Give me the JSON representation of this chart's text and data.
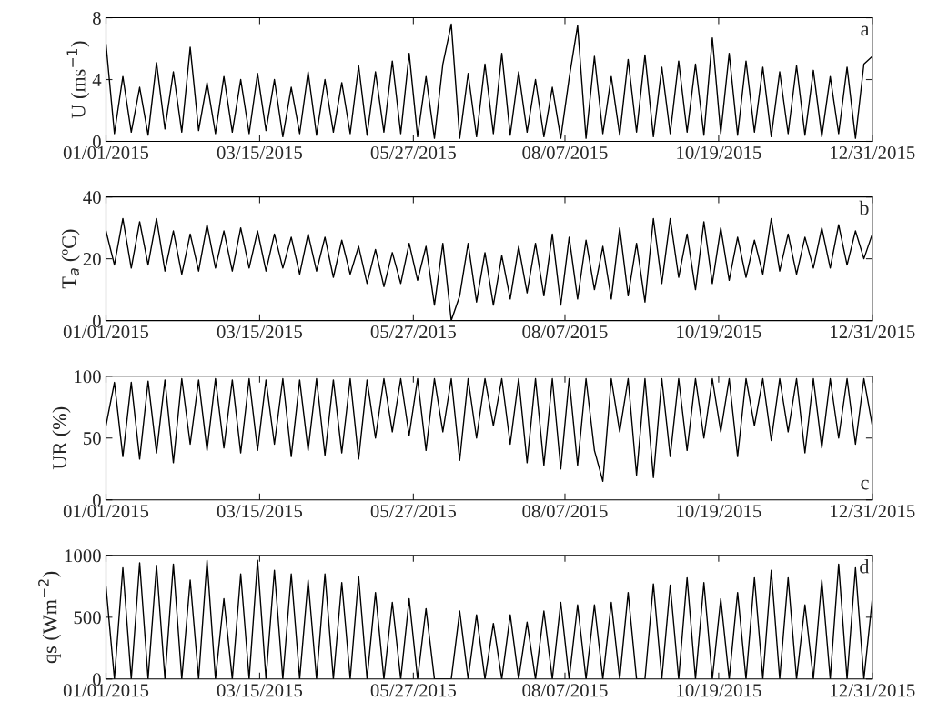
{
  "chart_data": [
    {
      "type": "line",
      "ylabel": "U (ms$^{−1}$)",
      "annotations": [
        "a"
      ],
      "xlim": [
        "2015-01-01",
        "2015-12-31"
      ],
      "xticks": [
        {
          "value": "2015-01-01",
          "label": "01/01/2015"
        },
        {
          "value": "2015-03-15",
          "label": "03/15/2015"
        },
        {
          "value": "2015-05-27",
          "label": "05/27/2015"
        },
        {
          "value": "2015-08-07",
          "label": "08/07/2015"
        },
        {
          "value": "2015-10-19",
          "label": "10/19/2015"
        },
        {
          "value": "2015-12-31",
          "label": "12/31/2015"
        }
      ],
      "ylim": [
        0,
        8
      ],
      "yticks": [
        0,
        4,
        8
      ],
      "grid": false,
      "legend": false,
      "x": [
        "2015-01-01",
        "2015-01-05",
        "2015-01-09",
        "2015-01-13",
        "2015-01-17",
        "2015-01-21",
        "2015-01-25",
        "2015-01-29",
        "2015-02-02",
        "2015-02-06",
        "2015-02-10",
        "2015-02-14",
        "2015-02-18",
        "2015-02-22",
        "2015-02-26",
        "2015-03-02",
        "2015-03-06",
        "2015-03-10",
        "2015-03-14",
        "2015-03-18",
        "2015-03-22",
        "2015-03-26",
        "2015-03-30",
        "2015-04-03",
        "2015-04-07",
        "2015-04-11",
        "2015-04-15",
        "2015-04-19",
        "2015-04-23",
        "2015-04-27",
        "2015-05-01",
        "2015-05-05",
        "2015-05-09",
        "2015-05-13",
        "2015-05-17",
        "2015-05-21",
        "2015-05-25",
        "2015-05-29",
        "2015-06-02",
        "2015-06-06",
        "2015-06-10",
        "2015-06-14",
        "2015-06-18",
        "2015-06-22",
        "2015-06-26",
        "2015-06-30",
        "2015-07-04",
        "2015-07-08",
        "2015-07-12",
        "2015-07-16",
        "2015-07-20",
        "2015-07-24",
        "2015-07-28",
        "2015-08-01",
        "2015-08-05",
        "2015-08-09",
        "2015-08-13",
        "2015-08-17",
        "2015-08-21",
        "2015-08-25",
        "2015-08-29",
        "2015-09-02",
        "2015-09-06",
        "2015-09-10",
        "2015-09-14",
        "2015-09-18",
        "2015-09-22",
        "2015-09-26",
        "2015-09-30",
        "2015-10-04",
        "2015-10-08",
        "2015-10-12",
        "2015-10-16",
        "2015-10-20",
        "2015-10-24",
        "2015-10-28",
        "2015-11-01",
        "2015-11-05",
        "2015-11-09",
        "2015-11-13",
        "2015-11-17",
        "2015-11-21",
        "2015-11-25",
        "2015-11-29",
        "2015-12-03",
        "2015-12-07",
        "2015-12-11",
        "2015-12-15",
        "2015-12-19",
        "2015-12-23",
        "2015-12-27",
        "2015-12-31"
      ],
      "series": [
        {
          "color": "#000000",
          "values": [
            6.3,
            0.5,
            4.2,
            0.6,
            3.5,
            0.4,
            5.1,
            0.8,
            4.5,
            0.6,
            6.1,
            0.7,
            3.8,
            0.5,
            4.2,
            0.6,
            4.0,
            0.5,
            4.4,
            0.7,
            4.0,
            0.3,
            3.5,
            0.5,
            4.5,
            0.4,
            4.0,
            0.6,
            3.8,
            0.5,
            4.9,
            0.4,
            4.5,
            0.6,
            5.2,
            0.5,
            5.7,
            0.3,
            4.2,
            0.2,
            5.0,
            7.6,
            0.2,
            4.4,
            0.3,
            5.0,
            0.5,
            5.7,
            0.4,
            4.5,
            0.6,
            4.0,
            0.3,
            3.5,
            0.2,
            4.1,
            7.5,
            0.2,
            5.5,
            0.5,
            4.2,
            0.4,
            5.3,
            0.6,
            5.6,
            0.3,
            4.8,
            0.5,
            5.2,
            0.6,
            5.0,
            0.4,
            6.7,
            0.5,
            5.7,
            0.4,
            5.2,
            0.6,
            4.8,
            0.3,
            4.5,
            0.5,
            4.9,
            0.4,
            4.6,
            0.3,
            4.2,
            0.5,
            4.8,
            0.2,
            5.0,
            5.5
          ]
        }
      ]
    },
    {
      "type": "line",
      "ylabel": "T$_{a}$ (ºC)",
      "annotations": [
        "b"
      ],
      "xlim": [
        "2015-01-01",
        "2015-12-31"
      ],
      "xticks": [
        {
          "value": "2015-01-01",
          "label": "01/01/2015"
        },
        {
          "value": "2015-03-15",
          "label": "03/15/2015"
        },
        {
          "value": "2015-05-27",
          "label": "05/27/2015"
        },
        {
          "value": "2015-08-07",
          "label": "08/07/2015"
        },
        {
          "value": "2015-10-19",
          "label": "10/19/2015"
        },
        {
          "value": "2015-12-31",
          "label": "12/31/2015"
        }
      ],
      "ylim": [
        0,
        40
      ],
      "yticks": [
        0,
        20,
        40
      ],
      "grid": false,
      "legend": false,
      "x": [
        "2015-01-01",
        "2015-01-05",
        "2015-01-09",
        "2015-01-13",
        "2015-01-17",
        "2015-01-21",
        "2015-01-25",
        "2015-01-29",
        "2015-02-02",
        "2015-02-06",
        "2015-02-10",
        "2015-02-14",
        "2015-02-18",
        "2015-02-22",
        "2015-02-26",
        "2015-03-02",
        "2015-03-06",
        "2015-03-10",
        "2015-03-14",
        "2015-03-18",
        "2015-03-22",
        "2015-03-26",
        "2015-03-30",
        "2015-04-03",
        "2015-04-07",
        "2015-04-11",
        "2015-04-15",
        "2015-04-19",
        "2015-04-23",
        "2015-04-27",
        "2015-05-01",
        "2015-05-05",
        "2015-05-09",
        "2015-05-13",
        "2015-05-17",
        "2015-05-21",
        "2015-05-25",
        "2015-05-29",
        "2015-06-02",
        "2015-06-06",
        "2015-06-10",
        "2015-06-14",
        "2015-06-18",
        "2015-06-22",
        "2015-06-26",
        "2015-06-30",
        "2015-07-04",
        "2015-07-08",
        "2015-07-12",
        "2015-07-16",
        "2015-07-20",
        "2015-07-24",
        "2015-07-28",
        "2015-08-01",
        "2015-08-05",
        "2015-08-09",
        "2015-08-13",
        "2015-08-17",
        "2015-08-21",
        "2015-08-25",
        "2015-08-29",
        "2015-09-02",
        "2015-09-06",
        "2015-09-10",
        "2015-09-14",
        "2015-09-18",
        "2015-09-22",
        "2015-09-26",
        "2015-09-30",
        "2015-10-04",
        "2015-10-08",
        "2015-10-12",
        "2015-10-16",
        "2015-10-20",
        "2015-10-24",
        "2015-10-28",
        "2015-11-01",
        "2015-11-05",
        "2015-11-09",
        "2015-11-13",
        "2015-11-17",
        "2015-11-21",
        "2015-11-25",
        "2015-11-29",
        "2015-12-03",
        "2015-12-07",
        "2015-12-11",
        "2015-12-15",
        "2015-12-19",
        "2015-12-23",
        "2015-12-27",
        "2015-12-31"
      ],
      "series": [
        {
          "color": "#000000",
          "values": [
            29,
            18,
            33,
            17,
            32,
            18,
            33,
            16,
            29,
            15,
            28,
            16,
            31,
            17,
            29,
            16,
            30,
            17,
            29,
            16,
            28,
            17,
            27,
            15,
            28,
            16,
            27,
            14,
            26,
            15,
            24,
            12,
            23,
            11,
            22,
            12,
            25,
            13,
            24,
            5,
            25,
            0,
            8,
            25,
            6,
            22,
            5,
            21,
            7,
            24,
            9,
            25,
            8,
            28,
            5,
            27,
            7,
            26,
            10,
            24,
            7,
            30,
            8,
            25,
            6,
            33,
            12,
            33,
            14,
            28,
            10,
            32,
            12,
            30,
            13,
            27,
            14,
            26,
            15,
            33,
            16,
            28,
            15,
            27,
            17,
            30,
            17,
            31,
            18,
            29,
            20,
            28
          ]
        }
      ]
    },
    {
      "type": "line",
      "ylabel": "UR (%)",
      "annotations": [
        "c"
      ],
      "xlim": [
        "2015-01-01",
        "2015-12-31"
      ],
      "xticks": [
        {
          "value": "2015-01-01",
          "label": "01/01/2015"
        },
        {
          "value": "2015-03-15",
          "label": "03/15/2015"
        },
        {
          "value": "2015-05-27",
          "label": "05/27/2015"
        },
        {
          "value": "2015-08-07",
          "label": "08/07/2015"
        },
        {
          "value": "2015-10-19",
          "label": "10/19/2015"
        },
        {
          "value": "2015-12-31",
          "label": "12/31/2015"
        }
      ],
      "ylim": [
        0,
        100
      ],
      "yticks": [
        0,
        50,
        100
      ],
      "grid": false,
      "legend": false,
      "x": [
        "2015-01-01",
        "2015-01-05",
        "2015-01-09",
        "2015-01-13",
        "2015-01-17",
        "2015-01-21",
        "2015-01-25",
        "2015-01-29",
        "2015-02-02",
        "2015-02-06",
        "2015-02-10",
        "2015-02-14",
        "2015-02-18",
        "2015-02-22",
        "2015-02-26",
        "2015-03-02",
        "2015-03-06",
        "2015-03-10",
        "2015-03-14",
        "2015-03-18",
        "2015-03-22",
        "2015-03-26",
        "2015-03-30",
        "2015-04-03",
        "2015-04-07",
        "2015-04-11",
        "2015-04-15",
        "2015-04-19",
        "2015-04-23",
        "2015-04-27",
        "2015-05-01",
        "2015-05-05",
        "2015-05-09",
        "2015-05-13",
        "2015-05-17",
        "2015-05-21",
        "2015-05-25",
        "2015-05-29",
        "2015-06-02",
        "2015-06-06",
        "2015-06-10",
        "2015-06-14",
        "2015-06-18",
        "2015-06-22",
        "2015-06-26",
        "2015-06-30",
        "2015-07-04",
        "2015-07-08",
        "2015-07-12",
        "2015-07-16",
        "2015-07-20",
        "2015-07-24",
        "2015-07-28",
        "2015-08-01",
        "2015-08-05",
        "2015-08-09",
        "2015-08-13",
        "2015-08-17",
        "2015-08-21",
        "2015-08-25",
        "2015-08-29",
        "2015-09-02",
        "2015-09-06",
        "2015-09-10",
        "2015-09-14",
        "2015-09-18",
        "2015-09-22",
        "2015-09-26",
        "2015-09-30",
        "2015-10-04",
        "2015-10-08",
        "2015-10-12",
        "2015-10-16",
        "2015-10-20",
        "2015-10-24",
        "2015-10-28",
        "2015-11-01",
        "2015-11-05",
        "2015-11-09",
        "2015-11-13",
        "2015-11-17",
        "2015-11-21",
        "2015-11-25",
        "2015-11-29",
        "2015-12-03",
        "2015-12-07",
        "2015-12-11",
        "2015-12-15",
        "2015-12-19",
        "2015-12-23",
        "2015-12-27",
        "2015-12-31"
      ],
      "series": [
        {
          "color": "#000000",
          "values": [
            60,
            95,
            35,
            95,
            33,
            96,
            38,
            97,
            30,
            98,
            45,
            97,
            40,
            98,
            42,
            97,
            38,
            98,
            40,
            97,
            45,
            98,
            35,
            97,
            40,
            98,
            36,
            97,
            38,
            98,
            33,
            97,
            50,
            98,
            55,
            98,
            52,
            98,
            40,
            98,
            55,
            98,
            32,
            98,
            50,
            98,
            60,
            98,
            45,
            98,
            30,
            98,
            28,
            98,
            25,
            98,
            28,
            98,
            40,
            15,
            98,
            55,
            98,
            20,
            98,
            18,
            98,
            35,
            98,
            40,
            98,
            50,
            98,
            55,
            98,
            35,
            98,
            60,
            98,
            48,
            98,
            55,
            98,
            38,
            98,
            42,
            98,
            50,
            98,
            45,
            98,
            60
          ]
        }
      ]
    },
    {
      "type": "line",
      "ylabel": "qs (Wm$^{−2}$)",
      "annotations": [
        "d"
      ],
      "xlim": [
        "2015-01-01",
        "2015-12-31"
      ],
      "xticks": [
        {
          "value": "2015-01-01",
          "label": "01/01/2015"
        },
        {
          "value": "2015-03-15",
          "label": "03/15/2015"
        },
        {
          "value": "2015-05-27",
          "label": "05/27/2015"
        },
        {
          "value": "2015-08-07",
          "label": "08/07/2015"
        },
        {
          "value": "2015-10-19",
          "label": "10/19/2015"
        },
        {
          "value": "2015-12-31",
          "label": "12/31/2015"
        }
      ],
      "ylim": [
        0,
        1000
      ],
      "yticks": [
        0,
        500,
        1000
      ],
      "grid": false,
      "legend": false,
      "x": [
        "2015-01-01",
        "2015-01-05",
        "2015-01-09",
        "2015-01-13",
        "2015-01-17",
        "2015-01-21",
        "2015-01-25",
        "2015-01-29",
        "2015-02-02",
        "2015-02-06",
        "2015-02-10",
        "2015-02-14",
        "2015-02-18",
        "2015-02-22",
        "2015-02-26",
        "2015-03-02",
        "2015-03-06",
        "2015-03-10",
        "2015-03-14",
        "2015-03-18",
        "2015-03-22",
        "2015-03-26",
        "2015-03-30",
        "2015-04-03",
        "2015-04-07",
        "2015-04-11",
        "2015-04-15",
        "2015-04-19",
        "2015-04-23",
        "2015-04-27",
        "2015-05-01",
        "2015-05-05",
        "2015-05-09",
        "2015-05-13",
        "2015-05-17",
        "2015-05-21",
        "2015-05-25",
        "2015-05-29",
        "2015-06-02",
        "2015-06-06",
        "2015-06-10",
        "2015-06-14",
        "2015-06-18",
        "2015-06-22",
        "2015-06-26",
        "2015-06-30",
        "2015-07-04",
        "2015-07-08",
        "2015-07-12",
        "2015-07-16",
        "2015-07-20",
        "2015-07-24",
        "2015-07-28",
        "2015-08-01",
        "2015-08-05",
        "2015-08-09",
        "2015-08-13",
        "2015-08-17",
        "2015-08-21",
        "2015-08-25",
        "2015-08-29",
        "2015-09-02",
        "2015-09-06",
        "2015-09-10",
        "2015-09-14",
        "2015-09-18",
        "2015-09-22",
        "2015-09-26",
        "2015-09-30",
        "2015-10-04",
        "2015-10-08",
        "2015-10-12",
        "2015-10-16",
        "2015-10-20",
        "2015-10-24",
        "2015-10-28",
        "2015-11-01",
        "2015-11-05",
        "2015-11-09",
        "2015-11-13",
        "2015-11-17",
        "2015-11-21",
        "2015-11-25",
        "2015-11-29",
        "2015-12-03",
        "2015-12-07",
        "2015-12-11",
        "2015-12-15",
        "2015-12-19",
        "2015-12-23",
        "2015-12-27",
        "2015-12-31"
      ],
      "series": [
        {
          "color": "#000000",
          "values": [
            750,
            0,
            900,
            0,
            940,
            0,
            920,
            0,
            930,
            0,
            800,
            0,
            960,
            0,
            650,
            0,
            850,
            0,
            960,
            0,
            880,
            0,
            850,
            0,
            800,
            0,
            850,
            0,
            780,
            0,
            830,
            0,
            700,
            0,
            620,
            0,
            650,
            0,
            570,
            0,
            0,
            0,
            550,
            0,
            520,
            0,
            450,
            0,
            520,
            0,
            460,
            0,
            550,
            0,
            620,
            0,
            600,
            0,
            600,
            0,
            620,
            0,
            700,
            0,
            0,
            770,
            0,
            760,
            0,
            820,
            0,
            780,
            0,
            650,
            0,
            700,
            0,
            820,
            0,
            880,
            0,
            820,
            0,
            600,
            0,
            800,
            0,
            930,
            0,
            900,
            0,
            650
          ]
        }
      ]
    }
  ]
}
